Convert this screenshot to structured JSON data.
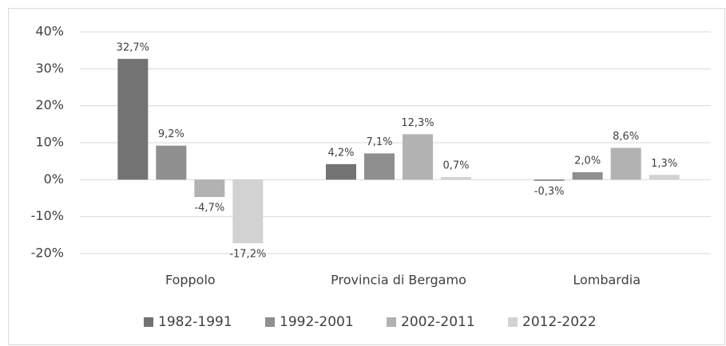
{
  "chart_data": {
    "type": "bar",
    "categories": [
      "Foppolo",
      "Provincia di Bergamo",
      "Lombardia"
    ],
    "series": [
      {
        "name": "1982-1991",
        "color": "#737373",
        "values": [
          32.7,
          4.2,
          -0.3
        ],
        "value_labels": [
          "32,7%",
          "4,2%",
          "-0,3%"
        ]
      },
      {
        "name": "1992-2001",
        "color": "#8f8f8f",
        "values": [
          9.2,
          7.1,
          2.0
        ],
        "value_labels": [
          "9,2%",
          "7,1%",
          "2,0%"
        ]
      },
      {
        "name": "2002-2011",
        "color": "#b2b2b2",
        "values": [
          -4.7,
          12.3,
          8.6
        ],
        "value_labels": [
          "-4,7%",
          "12,3%",
          "8,6%"
        ]
      },
      {
        "name": "2012-2022",
        "color": "#d2d2d2",
        "values": [
          -17.2,
          0.7,
          1.3
        ],
        "value_labels": [
          "-17,2%",
          "0,7%",
          "1,3%"
        ]
      }
    ],
    "ylim": [
      -20,
      40
    ],
    "yticks": [
      {
        "value": -20,
        "label": "-20%"
      },
      {
        "value": -10,
        "label": "-10%"
      },
      {
        "value": 0,
        "label": "0%"
      },
      {
        "value": 10,
        "label": "10%"
      },
      {
        "value": 20,
        "label": "20%"
      },
      {
        "value": 30,
        "label": "30%"
      },
      {
        "value": 40,
        "label": "40%"
      }
    ],
    "grid": true,
    "legend": "bottom"
  }
}
